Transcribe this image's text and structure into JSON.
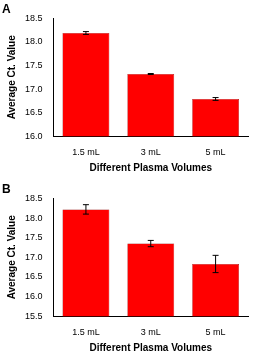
{
  "chart_data": [
    {
      "type": "bar",
      "title": "A",
      "categories": [
        "1.5 mL",
        "3 mL",
        "5 mL"
      ],
      "values": [
        18.19,
        17.32,
        16.79
      ],
      "errors": [
        0.03,
        0.01,
        0.03
      ],
      "color": "#ff0000",
      "xlabel": "Different Plasma Volumes",
      "ylabel": "Average Ct. Value",
      "ylim": [
        16.0,
        18.5
      ],
      "yticks": [
        {
          "value": 16.0,
          "label": "16.0"
        },
        {
          "value": 16.5,
          "label": "16.5"
        },
        {
          "value": 17.0,
          "label": "17.0"
        },
        {
          "value": 17.5,
          "label": "17.5"
        },
        {
          "value": 18.0,
          "label": "18.0"
        },
        {
          "value": 18.5,
          "label": "18.5"
        }
      ],
      "grid": false,
      "data_labels": true
    },
    {
      "type": "bar",
      "title": "B",
      "categories": [
        "1.5 mL",
        "3 mL",
        "5 mL"
      ],
      "values": [
        18.22,
        17.35,
        16.83
      ],
      "errors": [
        0.12,
        0.08,
        0.22
      ],
      "color": "#ff0000",
      "xlabel": "Different Plasma Volumes",
      "ylabel": "Average Ct. Value",
      "ylim": [
        15.5,
        18.5
      ],
      "yticks": [
        {
          "value": 15.5,
          "label": "15.5"
        },
        {
          "value": 16.0,
          "label": "16.0"
        },
        {
          "value": 16.5,
          "label": "16.5"
        },
        {
          "value": 17.0,
          "label": "17.0"
        },
        {
          "value": 17.5,
          "label": "17.5"
        },
        {
          "value": 18.0,
          "label": "18.0"
        },
        {
          "value": 18.5,
          "label": "18.5"
        }
      ],
      "grid": false,
      "data_labels": true
    }
  ]
}
